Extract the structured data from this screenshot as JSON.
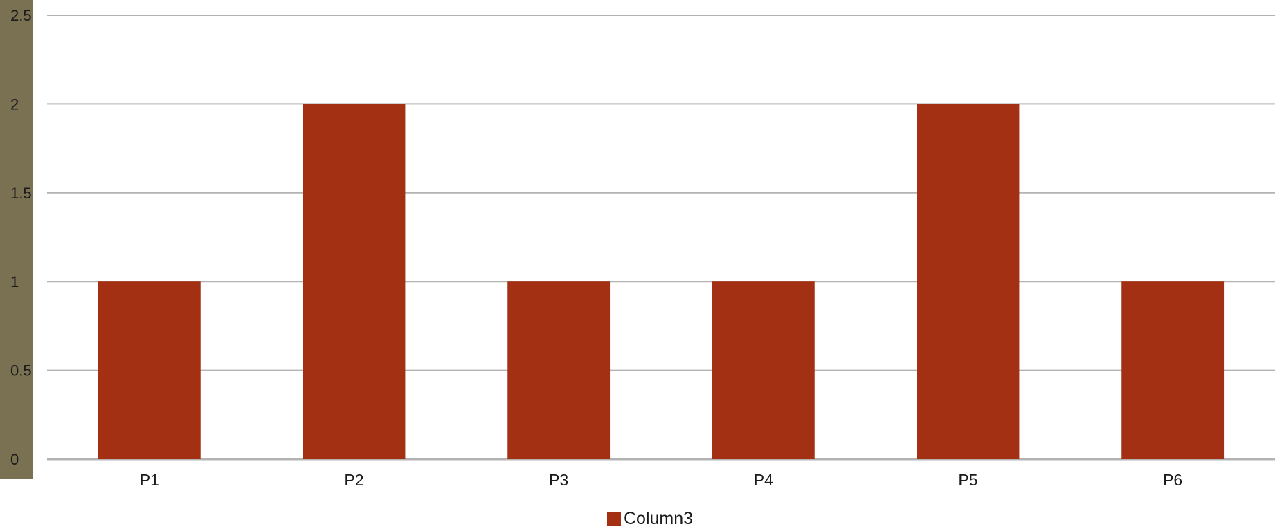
{
  "chart_data": {
    "type": "bar",
    "categories": [
      "P1",
      "P2",
      "P3",
      "P4",
      "P5",
      "P6"
    ],
    "series": [
      {
        "name": "Column3",
        "values": [
          1,
          2,
          1,
          1,
          2,
          1
        ],
        "color": "#a33012"
      }
    ],
    "title": "",
    "xlabel": "",
    "ylabel": "",
    "ylim": [
      0,
      2.5
    ],
    "yticks": [
      "0",
      "0.5",
      "1",
      "1.5",
      "2",
      "2.5"
    ],
    "grid": true,
    "legend_position": "bottom",
    "colors": {
      "bar": "#a33012",
      "grid": "#b3b3b3",
      "axis_strip": "#7a7152",
      "background": "#ffffff"
    }
  }
}
